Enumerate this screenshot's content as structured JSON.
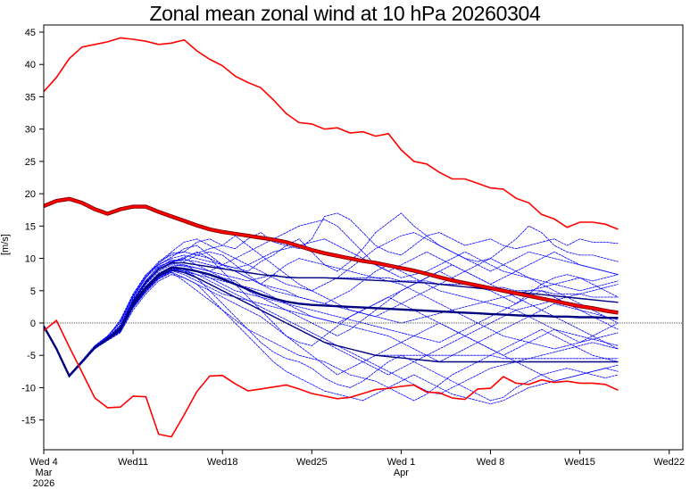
{
  "chart_data": {
    "type": "line",
    "title": "Zonal mean zonal wind at 10 hPa 20260304",
    "xlabel": "",
    "ylabel": "[m/s]",
    "ylim": [
      -19,
      46
    ],
    "xlim_days": [
      0,
      49
    ],
    "yticks": [
      45,
      40,
      35,
      30,
      25,
      20,
      15,
      10,
      5,
      0,
      -5,
      -10,
      -15
    ],
    "xticks": [
      {
        "day": 0,
        "lines": [
          "Wed 4",
          "Mar",
          "2026"
        ]
      },
      {
        "day": 7,
        "lines": [
          "Wed11"
        ]
      },
      {
        "day": 14,
        "lines": [
          "Wed18"
        ]
      },
      {
        "day": 21,
        "lines": [
          "Wed25"
        ]
      },
      {
        "day": 28,
        "lines": [
          "Wed 1",
          "Apr"
        ]
      },
      {
        "day": 35,
        "lines": [
          "Wed 8"
        ]
      },
      {
        "day": 42,
        "lines": [
          "Wed15"
        ]
      },
      {
        "day": 49,
        "lines": [
          "Wed22"
        ]
      }
    ],
    "zero_line": true,
    "colors": {
      "climatology": "#ff0000",
      "members": "#0000ff",
      "ensemble_mean": "#000080",
      "climatology_mean_outline": "#800000"
    },
    "climatology_max": [
      35.8,
      38.0,
      40.9,
      42.7,
      43.1,
      43.5,
      44.1,
      43.9,
      43.6,
      43.1,
      43.3,
      43.8,
      42.1,
      40.8,
      39.8,
      38.2,
      37.2,
      36.4,
      34.5,
      32.4,
      31.0,
      30.8,
      30.0,
      30.2,
      29.4,
      29.6,
      28.9,
      29.3,
      26.8,
      25.0,
      24.6,
      23.3,
      22.3,
      22.3,
      21.6,
      20.9,
      20.7,
      19.3,
      18.6,
      16.8,
      16.1,
      14.8,
      15.6,
      15.6,
      15.3,
      14.5
    ],
    "climatology_mean": [
      18.1,
      18.9,
      19.2,
      18.6,
      17.6,
      16.9,
      17.6,
      18.0,
      18.0,
      17.2,
      16.5,
      15.8,
      15.1,
      14.5,
      14.1,
      13.8,
      13.5,
      13.2,
      12.9,
      12.5,
      11.9,
      11.3,
      10.8,
      10.4,
      10.0,
      9.6,
      9.3,
      8.9,
      8.5,
      8.1,
      7.6,
      7.1,
      6.6,
      6.2,
      5.8,
      5.4,
      5.0,
      4.6,
      4.2,
      3.8,
      3.4,
      3.0,
      2.6,
      2.3,
      1.9,
      1.6
    ],
    "climatology_min": [
      -1.2,
      0.4,
      -3.7,
      -7.6,
      -11.6,
      -13.1,
      -13.0,
      -11.3,
      -11.4,
      -17.2,
      -17.6,
      -14.2,
      -10.6,
      -8.2,
      -8.1,
      -9.4,
      -10.5,
      -10.2,
      -9.9,
      -9.6,
      -10.2,
      -10.9,
      -11.3,
      -11.7,
      -11.5,
      -10.9,
      -10.3,
      -10.1,
      -9.8,
      -9.6,
      -10.7,
      -10.8,
      -11.6,
      -11.8,
      -10.2,
      -10.1,
      -8.3,
      -9.3,
      -9.5,
      -8.8,
      -9.2,
      -9.0,
      -9.3,
      -9.3,
      -9.5,
      -10.4
    ],
    "ensemble_mean": [
      -0.5,
      -4.0,
      -8.2,
      -6.0,
      -3.8,
      -2.5,
      -1.0,
      3.0,
      5.5,
      7.5,
      8.6,
      8.4,
      8.0,
      7.5,
      6.8,
      6.0,
      5.2,
      4.4,
      3.8,
      3.3,
      3.0,
      2.8,
      2.7,
      2.6,
      2.5,
      2.4,
      2.3,
      2.2,
      2.1,
      2.0,
      1.9,
      1.8,
      1.7,
      1.6,
      1.5,
      1.4,
      1.3,
      1.2,
      1.1,
      1.1,
      1.0,
      1.0,
      0.9,
      0.9,
      0.8,
      0.8
    ],
    "members": [
      [
        -0.5,
        -4.0,
        -8.0,
        -5.8,
        -3.5,
        -2.0,
        0.0,
        4.0,
        7.0,
        9.5,
        10.5,
        11.0,
        12.5,
        13.0,
        12.0,
        11.5,
        13.0,
        14.0,
        12.5,
        12.0,
        11.5,
        13.0,
        16.5,
        17.0,
        16.0,
        14.0,
        12.0,
        11.0,
        10.5,
        12.0,
        13.5,
        14.0,
        13.0,
        12.0,
        12.5,
        13.0,
        12.0,
        11.5,
        12.0,
        12.5,
        13.0,
        12.0,
        13.0,
        12.5,
        12.5,
        12.3
      ],
      [
        -0.5,
        -4.1,
        -8.3,
        -6.0,
        -3.6,
        -2.2,
        0.5,
        4.5,
        7.5,
        9.0,
        10.0,
        10.5,
        10.0,
        9.5,
        9.0,
        8.5,
        8.0,
        9.5,
        10.5,
        12.0,
        13.0,
        11.0,
        9.0,
        8.0,
        9.5,
        11.5,
        14.0,
        15.5,
        17.0,
        15.0,
        13.5,
        12.0,
        11.0,
        10.0,
        9.5,
        10.0,
        11.5,
        13.0,
        15.0,
        14.0,
        12.0,
        11.0,
        10.5,
        10.5,
        10.0,
        9.5
      ],
      [
        -0.5,
        -4.0,
        -8.2,
        -6.1,
        -3.9,
        -2.4,
        -0.5,
        3.5,
        6.5,
        8.8,
        9.5,
        10.0,
        9.0,
        8.0,
        7.0,
        6.5,
        5.0,
        4.0,
        3.0,
        2.0,
        1.0,
        0.0,
        -1.0,
        -2.0,
        -1.0,
        0.5,
        2.0,
        3.5,
        5.0,
        6.0,
        7.0,
        8.0,
        7.0,
        6.0,
        5.5,
        5.0,
        4.0,
        3.0,
        4.5,
        6.0,
        7.0,
        7.5,
        7.0,
        6.5,
        7.0,
        7.5
      ],
      [
        -0.5,
        -3.9,
        -8.1,
        -5.9,
        -3.8,
        -2.6,
        -1.2,
        2.5,
        5.0,
        7.0,
        8.0,
        8.5,
        7.0,
        5.0,
        3.0,
        1.0,
        -1.0,
        -3.0,
        -4.5,
        -5.5,
        -6.0,
        -7.0,
        -8.5,
        -9.5,
        -10.0,
        -9.0,
        -7.5,
        -6.0,
        -5.0,
        -6.0,
        -7.0,
        -8.0,
        -9.0,
        -10.0,
        -11.0,
        -12.0,
        -11.5,
        -10.0,
        -9.0,
        -8.0,
        -7.5,
        -7.0,
        -7.5,
        -8.0,
        -8.5,
        -8.0
      ],
      [
        -0.5,
        -4.0,
        -8.2,
        -6.0,
        -3.7,
        -2.3,
        -0.8,
        3.2,
        6.0,
        8.5,
        9.8,
        9.5,
        10.5,
        11.0,
        10.5,
        9.0,
        7.5,
        6.0,
        5.5,
        5.0,
        4.0,
        3.5,
        3.0,
        4.0,
        5.0,
        6.5,
        8.0,
        9.0,
        8.0,
        7.0,
        6.0,
        5.0,
        4.5,
        4.0,
        3.5,
        3.0,
        2.5,
        2.0,
        2.5,
        3.0,
        3.5,
        4.0,
        4.5,
        5.0,
        5.5,
        6.0
      ],
      [
        -0.5,
        -4.0,
        -8.3,
        -6.2,
        -4.0,
        -2.7,
        -1.5,
        2.0,
        4.5,
        6.5,
        7.5,
        7.0,
        6.0,
        4.0,
        2.0,
        0.5,
        -1.0,
        -2.0,
        -3.0,
        -4.0,
        -5.0,
        -5.5,
        -6.0,
        -7.0,
        -8.0,
        -8.5,
        -9.0,
        -10.0,
        -11.0,
        -12.0,
        -11.0,
        -9.5,
        -8.0,
        -7.0,
        -6.0,
        -5.0,
        -4.0,
        -3.0,
        -2.0,
        -1.0,
        -2.0,
        -3.0,
        -4.0,
        -5.0,
        -5.5,
        -6.0
      ],
      [
        -0.5,
        -4.0,
        -8.1,
        -5.9,
        -3.7,
        -2.2,
        -0.3,
        3.8,
        7.0,
        9.0,
        10.2,
        11.5,
        12.0,
        10.5,
        9.0,
        8.0,
        7.0,
        6.0,
        7.5,
        9.0,
        10.0,
        9.5,
        9.0,
        8.5,
        8.0,
        7.5,
        7.0,
        6.5,
        6.0,
        5.0,
        4.0,
        3.0,
        2.0,
        1.0,
        0.0,
        -1.0,
        -2.0,
        -2.5,
        -3.0,
        -3.5,
        -4.0,
        -3.5,
        -3.0,
        -2.5,
        -2.0,
        -1.5
      ],
      [
        -0.5,
        -4.0,
        -8.2,
        -6.0,
        -3.8,
        -2.5,
        -1.0,
        3.0,
        5.5,
        7.5,
        8.5,
        8.0,
        7.5,
        7.0,
        6.5,
        6.0,
        5.5,
        5.0,
        4.0,
        3.0,
        2.0,
        1.0,
        0.5,
        0.0,
        -0.5,
        -1.0,
        -1.5,
        -2.0,
        -3.0,
        -4.0,
        -5.0,
        -6.0,
        -5.0,
        -4.0,
        -3.0,
        -2.0,
        -1.0,
        0.0,
        1.0,
        2.0,
        3.0,
        2.5,
        2.0,
        1.5,
        1.0,
        0.5
      ],
      [
        -0.5,
        -4.1,
        -8.2,
        -6.1,
        -3.9,
        -2.6,
        -1.3,
        2.3,
        4.8,
        6.8,
        7.8,
        6.5,
        5.0,
        3.5,
        2.0,
        0.0,
        -2.0,
        -4.0,
        -6.0,
        -7.5,
        -8.5,
        -9.5,
        -10.5,
        -11.0,
        -11.5,
        -12.0,
        -11.0,
        -10.0,
        -9.0,
        -8.0,
        -9.0,
        -10.0,
        -11.0,
        -11.5,
        -12.0,
        -12.5,
        -12.0,
        -11.0,
        -10.0,
        -9.5,
        -9.0,
        -8.5,
        -8.0,
        -7.5,
        -7.0,
        -7.5
      ],
      [
        -0.5,
        -4.0,
        -8.2,
        -6.0,
        -3.6,
        -2.1,
        0.2,
        4.2,
        7.2,
        9.2,
        10.8,
        11.0,
        10.5,
        10.0,
        9.0,
        8.5,
        9.0,
        10.0,
        11.0,
        11.5,
        12.0,
        12.5,
        13.0,
        12.0,
        11.0,
        10.0,
        9.0,
        8.0,
        7.0,
        7.5,
        8.0,
        9.0,
        10.0,
        11.0,
        10.0,
        9.0,
        8.0,
        7.5,
        7.0,
        6.5,
        6.0,
        5.5,
        5.0,
        5.5,
        6.0,
        6.5
      ],
      [
        -0.5,
        -4.0,
        -8.2,
        -6.0,
        -3.8,
        -2.4,
        -0.7,
        3.3,
        6.2,
        8.2,
        9.2,
        9.0,
        8.5,
        8.0,
        7.5,
        7.0,
        6.5,
        7.0,
        7.5,
        7.0,
        7.0,
        7.0,
        7.0,
        7.0,
        7.0,
        7.0,
        7.0,
        7.0,
        6.5,
        6.5,
        6.5,
        6.0,
        6.0,
        6.0,
        5.5,
        5.5,
        5.5,
        5.0,
        5.0,
        5.0,
        4.5,
        4.5,
        4.5,
        4.0,
        4.0,
        4.0
      ],
      [
        -0.5,
        -4.0,
        -8.2,
        -6.0,
        -3.8,
        -2.5,
        -1.0,
        2.8,
        5.3,
        7.3,
        8.3,
        8.0,
        7.0,
        6.0,
        5.0,
        4.0,
        3.0,
        2.0,
        1.0,
        0.0,
        -1.0,
        -2.0,
        -3.0,
        -3.5,
        -4.0,
        -4.5,
        -5.0,
        -5.0,
        -5.0,
        -5.0,
        -5.0,
        -5.0,
        -5.0,
        -5.0,
        -5.0,
        -5.0,
        -5.5,
        -5.5,
        -5.5,
        -5.5,
        -5.5,
        -5.5,
        -5.5,
        -5.5,
        -5.5,
        -5.5
      ],
      [
        -0.5,
        -3.9,
        -8.0,
        -5.8,
        -3.5,
        -2.0,
        0.3,
        4.3,
        7.4,
        9.4,
        11.0,
        12.5,
        13.0,
        12.0,
        11.0,
        10.0,
        9.0,
        8.0,
        7.0,
        6.0,
        5.5,
        5.0,
        6.0,
        7.0,
        8.5,
        10.0,
        11.5,
        12.5,
        13.5,
        14.0,
        13.0,
        12.0,
        11.0,
        10.0,
        9.0,
        8.0,
        9.0,
        10.0,
        11.0,
        10.5,
        10.0,
        9.5,
        9.0,
        8.5,
        8.0,
        7.5
      ],
      [
        -0.5,
        -4.1,
        -8.3,
        -6.1,
        -3.9,
        -2.6,
        -1.2,
        2.6,
        5.1,
        7.1,
        8.1,
        7.5,
        6.5,
        5.5,
        4.5,
        4.0,
        3.5,
        3.0,
        2.5,
        2.0,
        1.5,
        1.0,
        0.5,
        0.0,
        1.0,
        2.0,
        3.0,
        4.0,
        3.0,
        2.0,
        1.0,
        0.0,
        -1.0,
        -2.0,
        -3.0,
        -4.0,
        -5.0,
        -6.0,
        -7.0,
        -8.0,
        -9.0,
        -8.5,
        -8.0,
        -7.5,
        -7.0,
        -6.5
      ],
      [
        -0.5,
        -4.0,
        -8.2,
        -6.0,
        -3.8,
        -2.4,
        -0.6,
        3.4,
        6.3,
        8.3,
        9.3,
        10.0,
        11.0,
        10.0,
        8.0,
        6.0,
        4.0,
        2.0,
        0.0,
        -2.0,
        -3.0,
        -3.5,
        -2.0,
        -0.5,
        1.0,
        2.0,
        3.0,
        4.0,
        5.0,
        6.0,
        7.0,
        8.0,
        9.0,
        8.0,
        7.0,
        6.0,
        5.0,
        4.0,
        3.0,
        2.0,
        1.0,
        0.0,
        -1.0,
        -2.0,
        -3.0,
        -4.0
      ],
      [
        -0.5,
        -4.0,
        -8.2,
        -6.0,
        -3.8,
        -2.5,
        -0.9,
        3.1,
        5.7,
        7.7,
        8.7,
        9.0,
        8.0,
        7.0,
        6.0,
        5.0,
        4.5,
        4.0,
        3.5,
        3.0,
        2.5,
        2.0,
        1.5,
        1.0,
        0.5,
        0.0,
        -0.5,
        -1.0,
        -1.5,
        -2.0,
        -2.5,
        -3.0,
        -2.0,
        -1.0,
        0.0,
        1.0,
        2.0,
        3.0,
        4.0,
        5.0,
        4.0,
        3.0,
        2.0,
        1.0,
        0.0,
        -1.0
      ],
      [
        -0.5,
        -4.0,
        -8.1,
        -5.9,
        -3.7,
        -2.3,
        -0.4,
        3.6,
        6.6,
        8.6,
        9.6,
        9.8,
        9.5,
        9.0,
        8.5,
        8.0,
        7.0,
        6.0,
        5.0,
        4.5,
        4.0,
        3.5,
        3.0,
        2.5,
        2.0,
        1.5,
        1.0,
        0.5,
        0.0,
        0.5,
        1.0,
        1.5,
        2.0,
        2.5,
        3.0,
        3.5,
        4.0,
        4.5,
        5.0,
        5.5,
        6.0,
        6.5,
        7.0,
        6.0,
        5.0,
        4.0
      ],
      [
        -0.5,
        -4.0,
        -8.2,
        -6.0,
        -3.8,
        -2.5,
        -1.1,
        2.9,
        5.4,
        7.4,
        8.4,
        8.0,
        7.0,
        6.0,
        5.0,
        4.0,
        3.0,
        2.0,
        1.0,
        0.0,
        -1.0,
        -2.0,
        -3.0,
        -4.0,
        -5.0,
        -6.0,
        -7.0,
        -8.0,
        -7.0,
        -6.0,
        -5.0,
        -4.0,
        -3.0,
        -2.0,
        -1.0,
        0.0,
        1.0,
        2.0,
        1.0,
        0.0,
        -1.0,
        -2.0,
        -3.0,
        -2.0,
        -1.0,
        0.0
      ],
      [
        -0.5,
        -4.0,
        -8.2,
        -6.0,
        -3.8,
        -2.3,
        -0.6,
        3.5,
        6.4,
        8.4,
        9.4,
        10.2,
        10.8,
        11.5,
        12.0,
        13.5,
        12.0,
        10.5,
        9.0,
        7.5,
        6.0,
        5.0,
        4.0,
        3.0,
        2.0,
        1.5,
        1.0,
        2.0,
        3.0,
        4.0,
        5.0,
        6.0,
        7.0,
        8.0,
        9.0,
        10.0,
        9.0,
        8.0,
        7.0,
        6.0,
        5.0,
        4.0,
        3.0,
        2.0,
        1.0,
        0.0
      ],
      [
        -0.5,
        -4.0,
        -8.2,
        -6.0,
        -3.9,
        -2.6,
        -1.4,
        2.4,
        4.9,
        6.9,
        7.9,
        7.0,
        6.0,
        5.0,
        4.0,
        3.0,
        2.0,
        1.0,
        -0.5,
        -2.0,
        -3.5,
        -5.0,
        -6.5,
        -8.0,
        -7.0,
        -6.0,
        -5.0,
        -4.0,
        -3.0,
        -2.0,
        -1.0,
        0.0,
        -1.0,
        -2.0,
        -3.0,
        -4.0,
        -5.0,
        -4.0,
        -3.0,
        -2.0,
        -1.0,
        -1.5,
        -2.0,
        -2.5,
        -3.0,
        -3.5
      ],
      [
        -0.5,
        -4.0,
        -8.2,
        -6.0,
        -3.8,
        -2.4,
        -0.8,
        3.2,
        6.0,
        8.0,
        9.0,
        8.8,
        8.5,
        8.0,
        9.0,
        10.0,
        11.0,
        12.0,
        13.0,
        14.0,
        15.0,
        15.5,
        16.0,
        15.0,
        13.0,
        11.0,
        9.0,
        8.0,
        9.0,
        10.0,
        11.0,
        10.0,
        9.0,
        8.0,
        7.0,
        6.0,
        7.0,
        8.0,
        9.0,
        10.0,
        11.0,
        10.0,
        9.0,
        8.5,
        8.0,
        7.5
      ],
      [
        -0.5,
        -4.0,
        -8.2,
        -6.0,
        -3.8,
        -2.5,
        -1.0,
        3.0,
        5.6,
        7.6,
        8.6,
        8.2,
        7.5,
        6.5,
        5.5,
        4.5,
        3.5,
        2.5,
        1.5,
        0.5,
        -0.5,
        -1.5,
        -2.5,
        -3.5,
        -4.5,
        -5.5,
        -6.5,
        -7.5,
        -8.5,
        -9.5,
        -10.5,
        -11.0,
        -10.0,
        -9.0,
        -8.0,
        -7.0,
        -6.5,
        -6.0,
        -5.5,
        -5.0,
        -4.5,
        -4.0,
        -3.5,
        -3.0,
        -3.5,
        -4.0
      ]
    ],
    "highlight_members": [
      [
        -0.5,
        -4.0,
        -8.2,
        -6.0,
        -3.8,
        -2.4,
        -0.7,
        3.3,
        6.3,
        8.3,
        9.3,
        9.3,
        9.0,
        8.7,
        8.4,
        8.1,
        7.8,
        7.5,
        7.3,
        7.1,
        7.0,
        7.0,
        7.0,
        6.9,
        6.8,
        6.7,
        6.6,
        6.5,
        6.4,
        6.3,
        6.2,
        6.0,
        5.8,
        5.6,
        5.4,
        5.2,
        5.0,
        4.8,
        4.6,
        4.4,
        4.2,
        4.0,
        3.8,
        3.6,
        3.4,
        3.2
      ],
      [
        -0.5,
        -4.0,
        -8.2,
        -6.0,
        -3.8,
        -2.5,
        -1.2,
        2.7,
        5.2,
        7.2,
        8.2,
        7.8,
        7.0,
        6.0,
        5.0,
        4.0,
        3.0,
        2.0,
        1.0,
        0.0,
        -1.0,
        -2.0,
        -3.0,
        -3.5,
        -4.0,
        -4.5,
        -5.0,
        -5.2,
        -5.4,
        -5.6,
        -5.8,
        -6.0,
        -6.0,
        -6.0,
        -6.0,
        -6.0,
        -6.0,
        -6.0,
        -6.0,
        -6.0,
        -6.0,
        -6.0,
        -6.0,
        -6.0,
        -6.0,
        -6.0
      ]
    ]
  }
}
